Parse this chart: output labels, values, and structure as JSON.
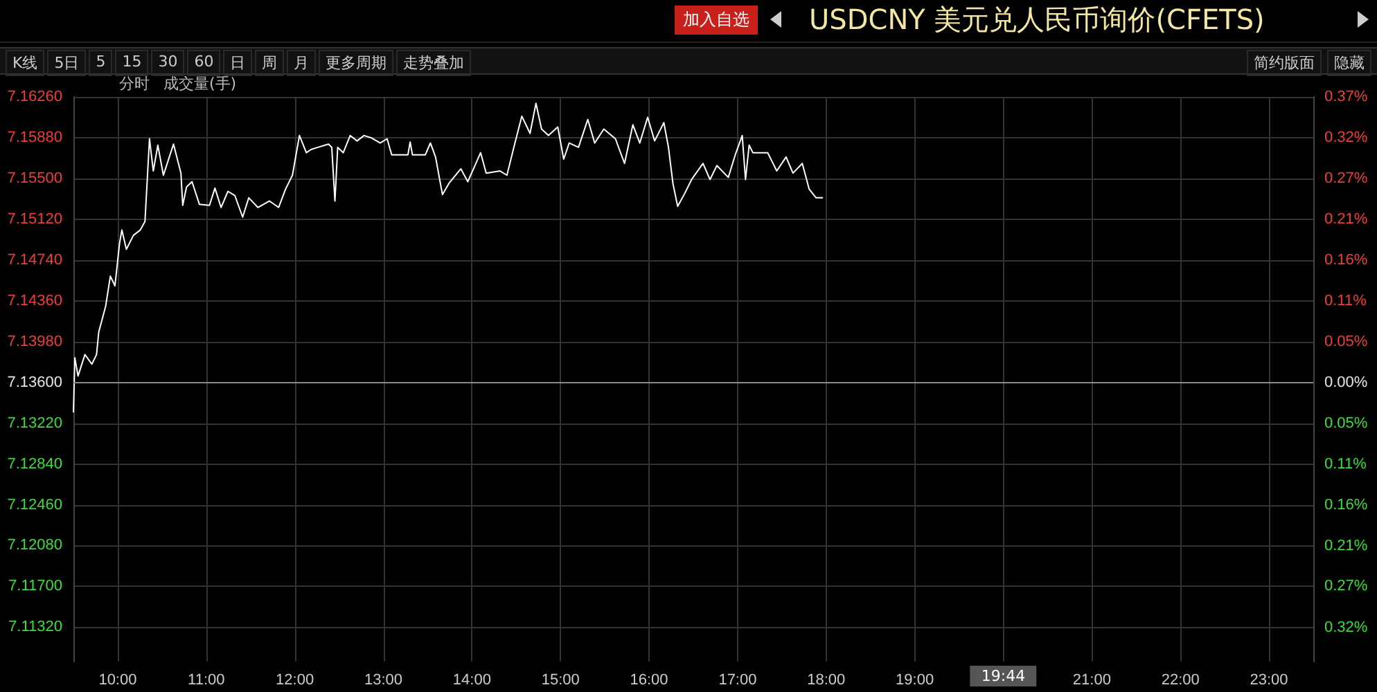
{
  "chart_data": {
    "type": "line",
    "title": "USDCNY 美元兑人民币询价(CFETS)",
    "annotations": [
      "加入自选",
      "K线",
      "5日",
      "5",
      "15",
      "30",
      "60",
      "日",
      "周",
      "月",
      "更多周期",
      "走势叠加",
      "简约版面",
      "隐藏",
      "分时",
      "成交量(手)",
      "19:44"
    ],
    "series": [
      {
        "color": "#ffffff",
        "x": [
          9.5,
          9.516,
          9.552,
          9.63,
          9.708,
          9.761,
          9.786,
          9.864,
          9.917,
          9.969,
          10.02,
          10.047,
          10.098,
          10.177,
          10.255,
          10.308,
          10.359,
          10.402,
          10.453,
          10.516,
          10.567,
          10.63,
          10.714,
          10.734,
          10.777,
          10.839,
          10.922,
          11.036,
          11.098,
          11.167,
          11.245,
          11.323,
          11.411,
          11.48,
          11.583,
          11.714,
          11.817,
          11.895,
          11.973,
          12.052,
          12.13,
          12.183,
          12.261,
          12.38,
          12.417,
          12.453,
          12.484,
          12.547,
          12.625,
          12.703,
          12.781,
          12.859,
          12.964,
          13.042,
          13.094,
          13.277,
          13.302,
          13.328,
          13.473,
          13.531,
          13.589,
          13.667,
          13.745,
          13.875,
          13.953,
          14.098,
          14.161,
          14.317,
          14.395,
          14.473,
          14.563,
          14.656,
          14.723,
          14.786,
          14.864,
          14.969,
          15.036,
          15.098,
          15.203,
          15.308,
          15.386,
          15.489,
          15.62,
          15.723,
          15.817,
          15.895,
          15.984,
          16.063,
          16.167,
          16.219,
          16.27,
          16.323,
          16.402,
          16.48,
          16.609,
          16.688,
          16.766,
          16.895,
          16.973,
          17.052,
          17.089,
          17.13,
          17.172,
          17.339,
          17.442,
          17.547,
          17.625,
          17.73,
          17.808,
          17.886,
          17.964
        ],
        "values": [
          7.1332,
          7.1383,
          7.1366,
          7.1386,
          7.1377,
          7.1386,
          7.1407,
          7.1431,
          7.1459,
          7.145,
          7.1489,
          7.1502,
          7.1484,
          7.1497,
          7.1502,
          7.151,
          7.1587,
          7.1557,
          7.1581,
          7.1553,
          7.1566,
          7.1582,
          7.1555,
          7.1525,
          7.1542,
          7.1547,
          7.1526,
          7.1525,
          7.1541,
          7.1523,
          7.1538,
          7.1534,
          7.1514,
          7.1532,
          7.1523,
          7.1529,
          7.1523,
          7.154,
          7.1553,
          7.159,
          7.1574,
          7.1577,
          7.1579,
          7.1582,
          7.1579,
          7.1529,
          7.1579,
          7.1574,
          7.159,
          7.1585,
          7.159,
          7.1588,
          7.1583,
          7.1587,
          7.1572,
          7.1572,
          7.1584,
          7.1572,
          7.1572,
          7.1583,
          7.157,
          7.1535,
          7.1546,
          7.1559,
          7.1547,
          7.1574,
          7.1555,
          7.1557,
          7.1553,
          7.1579,
          7.1608,
          7.1592,
          7.162,
          7.1596,
          7.159,
          7.1598,
          7.1568,
          7.1583,
          7.1579,
          7.1605,
          7.1583,
          7.1596,
          7.1587,
          7.1564,
          7.16,
          7.1583,
          7.1607,
          7.1585,
          7.1602,
          7.1579,
          7.1545,
          7.1524,
          7.1536,
          7.1549,
          7.1564,
          7.1549,
          7.1562,
          7.1551,
          7.1572,
          7.159,
          7.1549,
          7.1581,
          7.1574,
          7.1574,
          7.1557,
          7.157,
          7.1555,
          7.1564,
          7.154,
          7.1532,
          7.1532
        ]
      }
    ],
    "xlim": [
      9.5,
      23.5
    ],
    "xticks": [
      {
        "value": 10,
        "label": "10:00"
      },
      {
        "value": 11,
        "label": "11:00"
      },
      {
        "value": 12,
        "label": "12:00"
      },
      {
        "value": 13,
        "label": "13:00"
      },
      {
        "value": 14,
        "label": "14:00"
      },
      {
        "value": 15,
        "label": "15:00"
      },
      {
        "value": 16,
        "label": "16:00"
      },
      {
        "value": 17,
        "label": "17:00"
      },
      {
        "value": 18,
        "label": "18:00"
      },
      {
        "value": 19,
        "label": "19:00"
      },
      {
        "value": 20,
        "label": null
      },
      {
        "value": 21,
        "label": "21:00"
      },
      {
        "value": 22,
        "label": "22:00"
      },
      {
        "value": 23,
        "label": "23:00"
      }
    ],
    "ylim": [
      7.11,
      7.1626
    ],
    "yticks": [
      {
        "value": 7.1132,
        "label": "7.11320"
      },
      {
        "value": 7.117,
        "label": "7.11700"
      },
      {
        "value": 7.1208,
        "label": "7.12080"
      },
      {
        "value": 7.1246,
        "label": "7.12460"
      },
      {
        "value": 7.1284,
        "label": "7.12840"
      },
      {
        "value": 7.1322,
        "label": "7.13220"
      },
      {
        "value": 7.136,
        "label": "7.13600"
      },
      {
        "value": 7.1398,
        "label": "7.13980"
      },
      {
        "value": 7.1436,
        "label": "7.14360"
      },
      {
        "value": 7.1474,
        "label": "7.14740"
      },
      {
        "value": 7.1512,
        "label": "7.15120"
      },
      {
        "value": 7.155,
        "label": "7.15500"
      },
      {
        "value": 7.1588,
        "label": "7.15880"
      },
      {
        "value": 7.1626,
        "label": "7.16260"
      }
    ],
    "y2lim": [
      -0.364,
      0.373
    ],
    "y2ticks": [
      {
        "value": -0.32,
        "label": "0.32%"
      },
      {
        "value": -0.266,
        "label": "0.27%"
      },
      {
        "value": -0.213,
        "label": "0.21%"
      },
      {
        "value": -0.16,
        "label": "0.16%"
      },
      {
        "value": -0.107,
        "label": "0.11%"
      },
      {
        "value": -0.053,
        "label": "0.05%"
      },
      {
        "value": 0,
        "label": "0.00%"
      },
      {
        "value": 0.053,
        "label": "0.05%"
      },
      {
        "value": 0.107,
        "label": "0.11%"
      },
      {
        "value": 0.16,
        "label": "0.16%"
      },
      {
        "value": 0.213,
        "label": "0.21%"
      },
      {
        "value": 0.266,
        "label": "0.27%"
      },
      {
        "value": 0.32,
        "label": "0.32%"
      },
      {
        "value": 0.373,
        "label": "0.37%"
      }
    ],
    "ref_lines": [
      {
        "axis": "y",
        "value": 7.136,
        "color": "#8a8a8a"
      }
    ],
    "grid": true,
    "marker": "none",
    "line_style": "solid"
  }
}
